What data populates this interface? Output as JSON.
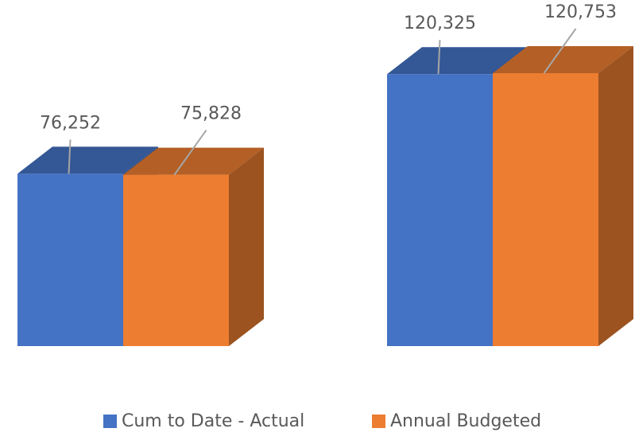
{
  "chart_data": {
    "type": "bar3d",
    "categories": [
      null,
      null
    ],
    "series": [
      {
        "name": "Cum to Date - Actual",
        "color": "#4472c4",
        "values": [
          76252,
          120325
        ],
        "value_labels": [
          "76,252",
          "120,325"
        ]
      },
      {
        "name": "Annual Budgeted",
        "color": "#ed7d31",
        "values": [
          75828,
          120753
        ],
        "value_labels": [
          "75,828",
          "120,753"
        ]
      }
    ],
    "legend": "bottom"
  }
}
